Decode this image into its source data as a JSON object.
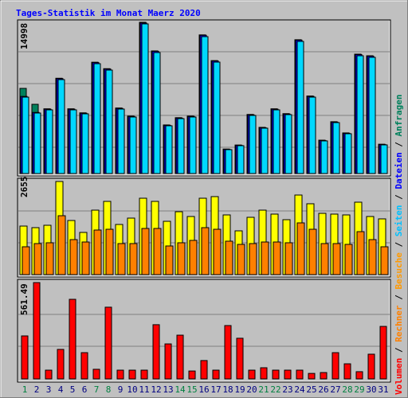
{
  "chart_data": [
    {
      "type": "bar",
      "title": "Tages-Statistik im Monat Maerz 2020",
      "ylim": [
        0,
        14998
      ],
      "yticks": [
        14998
      ],
      "series": [
        {
          "name": "Anfragen",
          "color": "#00805c",
          "values": [
            8445,
            6866,
            6420,
            9450,
            6420,
            6020,
            11040,
            10400,
            6500,
            5700,
            14998,
            12160,
            4820,
            5540,
            5700,
            13750,
            11200,
            2430,
            2830,
            5860,
            4580,
            6420,
            5940,
            13270,
            7690,
            3310,
            5140,
            4030,
            11840,
            11680,
            2910
          ]
        },
        {
          "name": "Dateien",
          "color": "#0000ff",
          "values": [
            7650,
            6060,
            6380,
            9410,
            6380,
            5980,
            11000,
            10360,
            6460,
            5660,
            14930,
            12120,
            4780,
            5500,
            5660,
            13710,
            11160,
            2390,
            2790,
            5820,
            4540,
            6380,
            5900,
            13230,
            7650,
            3270,
            5100,
            3990,
            11800,
            11640,
            2870
          ]
        },
        {
          "name": "Seiten",
          "color": "#00d8ff",
          "values": [
            7577,
            6000,
            6315,
            9314,
            6315,
            5920,
            10893,
            10260,
            6394,
            5605,
            14840,
            11998,
            4736,
            5446,
            5605,
            13576,
            11050,
            2368,
            2763,
            5762,
            4499,
            6315,
            5841,
            13103,
            7577,
            3236,
            5052,
            3947,
            11682,
            11524,
            2841
          ]
        }
      ]
    },
    {
      "type": "bar",
      "ylim": [
        0,
        2655
      ],
      "yticks": [
        2655
      ],
      "series": [
        {
          "name": "Besuche",
          "color": "#ffff00",
          "text_color": "#ff9900",
          "values": [
            1384,
            1339,
            1407,
            2655,
            1543,
            1203,
            1838,
            2088,
            1430,
            1611,
            2178,
            2088,
            1520,
            1793,
            1657,
            2178,
            2224,
            1702,
            1248,
            1634,
            1838,
            1725,
            1566,
            2269,
            2020,
            1747,
            1725,
            1702,
            2065,
            1657,
            1589
          ]
        },
        {
          "name": "Rechner",
          "color": "#ff8000",
          "values": [
            794,
            885,
            908,
            1679,
            998,
            930,
            1271,
            1293,
            885,
            885,
            1316,
            1316,
            817,
            908,
            976,
            1339,
            1293,
            953,
            862,
            885,
            930,
            930,
            908,
            1475,
            1293,
            885,
            885,
            862,
            1225,
            998,
            794
          ]
        }
      ]
    },
    {
      "type": "bar",
      "ylim": [
        0,
        561.49
      ],
      "yticks": [
        561.49
      ],
      "categories": [
        "1",
        "2",
        "3",
        "4",
        "5",
        "6",
        "7",
        "8",
        "9",
        "10",
        "11",
        "12",
        "13",
        "14",
        "15",
        "16",
        "17",
        "18",
        "19",
        "20",
        "21",
        "22",
        "23",
        "24",
        "25",
        "26",
        "27",
        "28",
        "29",
        "30",
        "31"
      ],
      "category_colors": [
        "#008040",
        "#000080",
        "#000080",
        "#000080",
        "#000080",
        "#000080",
        "#008040",
        "#008040",
        "#000080",
        "#000080",
        "#000080",
        "#000080",
        "#000080",
        "#008040",
        "#008040",
        "#000080",
        "#000080",
        "#000080",
        "#000080",
        "#000080",
        "#008040",
        "#008040",
        "#000080",
        "#000080",
        "#000080",
        "#000080",
        "#000080",
        "#008040",
        "#008040",
        "#000080",
        "#000080"
      ],
      "series": [
        {
          "name": "Volumen",
          "color": "#ff0000",
          "values": [
            250.6,
            561.49,
            51,
            172,
            464,
            153,
            56,
            418,
            51,
            51,
            51,
            316,
            204,
            255,
            46,
            107,
            51,
            311,
            237,
            51,
            65,
            51,
            51,
            51,
            32,
            37,
            153,
            88,
            42,
            144,
            306
          ]
        }
      ]
    }
  ]
}
